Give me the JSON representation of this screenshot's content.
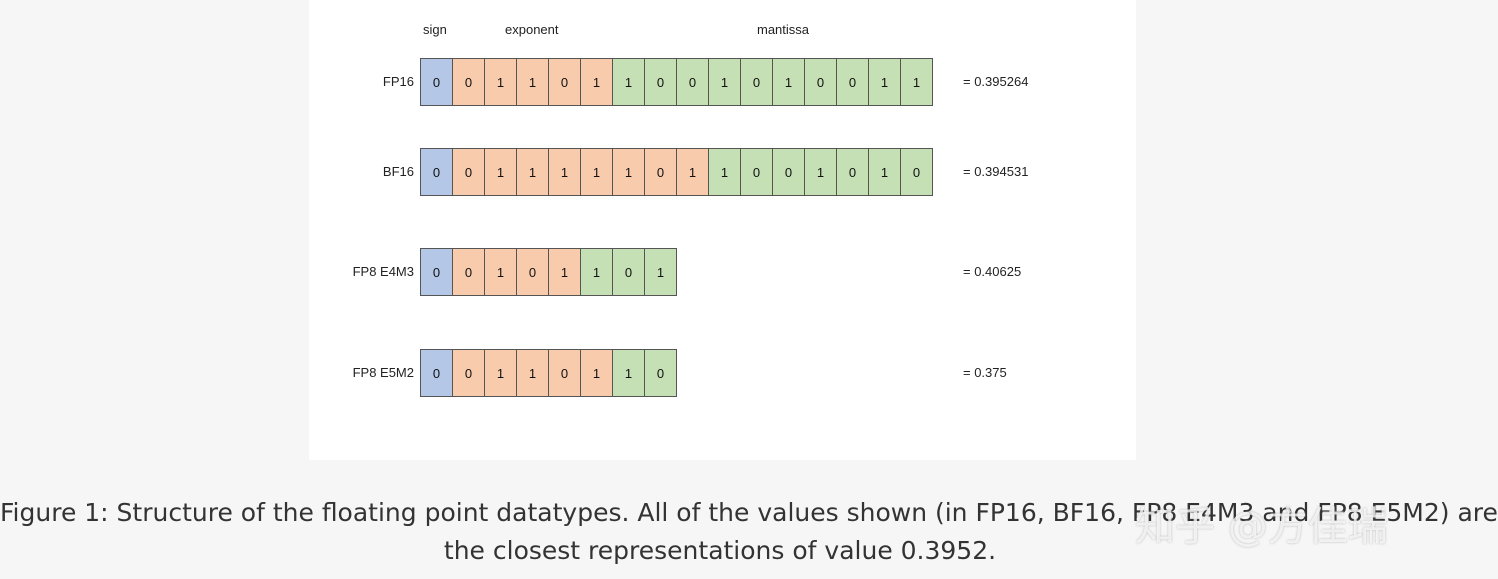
{
  "headers": {
    "sign": "sign",
    "exponent": "exponent",
    "mantissa": "mantissa"
  },
  "colors": {
    "sign": "#b4c7e7",
    "exponent": "#f8cbad",
    "mantissa": "#c5e0b4"
  },
  "rows": [
    {
      "label": "FP16",
      "value": "= 0.395264",
      "bits": [
        "0",
        "0",
        "1",
        "1",
        "0",
        "1",
        "1",
        "0",
        "0",
        "1",
        "0",
        "1",
        "0",
        "0",
        "1",
        "1"
      ],
      "exp_bits": 5,
      "mant_bits": 10
    },
    {
      "label": "BF16",
      "value": "= 0.394531",
      "bits": [
        "0",
        "0",
        "1",
        "1",
        "1",
        "1",
        "1",
        "0",
        "1",
        "1",
        "0",
        "0",
        "1",
        "0",
        "1",
        "0"
      ],
      "exp_bits": 8,
      "mant_bits": 7
    },
    {
      "label": "FP8 E4M3",
      "value": "= 0.40625",
      "bits": [
        "0",
        "0",
        "1",
        "0",
        "1",
        "1",
        "0",
        "1"
      ],
      "exp_bits": 4,
      "mant_bits": 3
    },
    {
      "label": "FP8 E5M2",
      "value": "= 0.375",
      "bits": [
        "0",
        "0",
        "1",
        "1",
        "0",
        "1",
        "1",
        "0"
      ],
      "exp_bits": 5,
      "mant_bits": 2
    }
  ],
  "caption": {
    "line1": "Figure 1: Structure of the floating point datatypes. All of the values shown (in FP16, BF16, FP8 E4M3 and FP8 E5M2) are",
    "line2": "the closest representations of value 0.3952."
  },
  "watermark": "知乎 @方佳瑞"
}
